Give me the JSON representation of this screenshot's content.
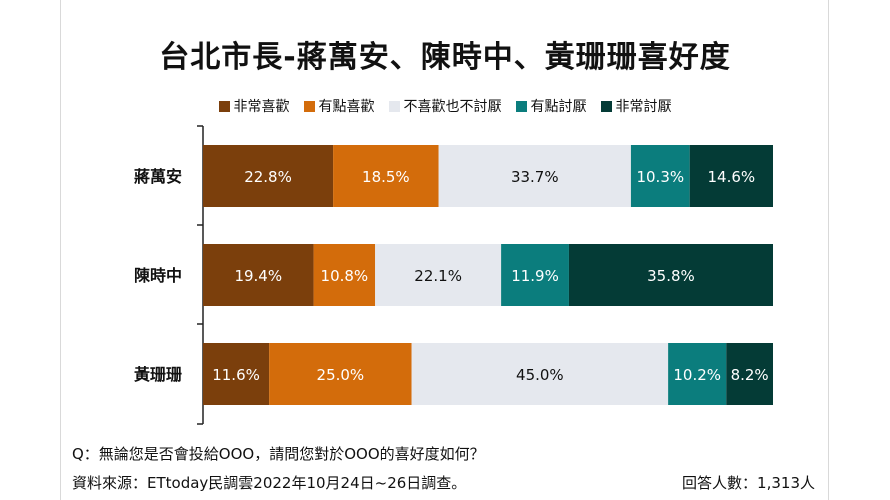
{
  "title": "台北市長-蔣萬安、陳時中、黃珊珊喜好度",
  "chart_data": {
    "type": "bar",
    "orientation": "horizontal",
    "stacked": true,
    "percent_stacked": true,
    "categories": [
      "蔣萬安",
      "陳時中",
      "黃珊珊"
    ],
    "series": [
      {
        "name": "非常喜歡",
        "color": "#7b3f0c",
        "values": [
          22.8,
          19.4,
          11.6
        ],
        "labels": [
          "22.8%",
          "19.4%",
          "11.6%"
        ]
      },
      {
        "name": "有點喜歡",
        "color": "#d36c0b",
        "values": [
          18.5,
          10.8,
          25.0
        ],
        "labels": [
          "18.5%",
          "10.8%",
          "25.0%"
        ]
      },
      {
        "name": "不喜歡也不討厭",
        "color": "#e5e8ee",
        "values": [
          33.7,
          22.1,
          45.0
        ],
        "labels": [
          "33.7%",
          "22.1%",
          "45.0%"
        ]
      },
      {
        "name": "有點討厭",
        "color": "#0b7d7d",
        "values": [
          10.3,
          11.9,
          10.2
        ],
        "labels": [
          "10.3%",
          "11.9%",
          "10.2%"
        ]
      },
      {
        "name": "非常討厭",
        "color": "#043b36",
        "values": [
          14.6,
          35.8,
          8.2
        ],
        "labels": [
          "14.6%",
          "35.8%",
          "8.2%"
        ]
      }
    ],
    "legend_position": "top",
    "grid": false
  },
  "footer": {
    "question": "Q：無論您是否會投給OOO，請問您對於OOO的喜好度如何？",
    "source": "資料來源：ETtoday民調雲2022年10月24日~26日調查。",
    "respondents": "回答人數：1,313人"
  }
}
